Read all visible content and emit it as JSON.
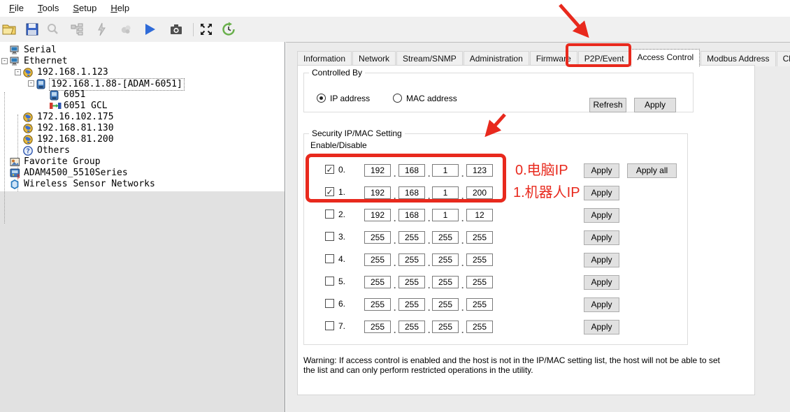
{
  "menu": {
    "items": [
      "File",
      "Tools",
      "Setup",
      "Help"
    ]
  },
  "toolbar": {
    "icons": [
      "open-file-icon",
      "save-icon",
      "search-icon",
      "group-config-icon",
      "flash-icon",
      "offline-icon",
      "run-icon",
      "snapshot-icon",
      "fullscreen-icon",
      "refresh-rate-icon"
    ]
  },
  "tree": {
    "items": [
      {
        "label": "Serial",
        "icon": "computer-icon",
        "level": 0,
        "expander": "",
        "selected": false
      },
      {
        "label": "Ethernet",
        "icon": "computer-icon",
        "level": 0,
        "expander": "-",
        "selected": false
      },
      {
        "label": "192.168.1.123",
        "icon": "globe-icon",
        "level": 1,
        "expander": "-",
        "selected": false
      },
      {
        "label": "192.168.1.88-[ADAM-6051]",
        "icon": "device-icon",
        "level": 2,
        "expander": "-",
        "selected": true
      },
      {
        "label": "6051",
        "icon": "device-icon",
        "level": 3,
        "expander": "",
        "selected": false
      },
      {
        "label": "6051 GCL",
        "icon": "gcl-icon",
        "level": 3,
        "expander": "",
        "selected": false
      },
      {
        "label": "172.16.102.175",
        "icon": "globe-icon",
        "level": 1,
        "expander": "",
        "selected": false
      },
      {
        "label": "192.168.81.130",
        "icon": "globe-icon",
        "level": 1,
        "expander": "",
        "selected": false
      },
      {
        "label": "192.168.81.200",
        "icon": "globe-icon",
        "level": 1,
        "expander": "",
        "selected": false
      },
      {
        "label": "Others",
        "icon": "others-icon",
        "level": 1,
        "expander": "",
        "selected": false
      },
      {
        "label": "Favorite Group",
        "icon": "favorite-icon",
        "level": 0,
        "expander": "",
        "selected": false
      },
      {
        "label": "ADAM4500_5510Series",
        "icon": "adam4500-icon",
        "level": 0,
        "expander": "",
        "selected": false
      },
      {
        "label": "Wireless Sensor Networks",
        "icon": "wireless-icon",
        "level": 0,
        "expander": "",
        "selected": false
      }
    ]
  },
  "tabs": {
    "items": [
      "Information",
      "Network",
      "Stream/SNMP",
      "Administration",
      "Firmware",
      "P2P/Event",
      "Access Control",
      "Modbus Address",
      "Cloud"
    ],
    "selected": "Access Control"
  },
  "access_control": {
    "controlled_by": {
      "title": "Controlled By",
      "options": [
        {
          "label": "IP address",
          "selected": true
        },
        {
          "label": "MAC address",
          "selected": false
        }
      ],
      "refresh_label": "Refresh",
      "apply_label": "Apply"
    },
    "security": {
      "title": "Security IP/MAC Setting",
      "enable_label": "Enable/Disable",
      "apply_label": "Apply",
      "apply_all_label": "Apply all",
      "rows": [
        {
          "label": "0.",
          "checked": true,
          "octets": [
            "192",
            "168",
            "1",
            "123"
          ]
        },
        {
          "label": "1.",
          "checked": true,
          "octets": [
            "192",
            "168",
            "1",
            "200"
          ]
        },
        {
          "label": "2.",
          "checked": false,
          "octets": [
            "192",
            "168",
            "1",
            "12"
          ]
        },
        {
          "label": "3.",
          "checked": false,
          "octets": [
            "255",
            "255",
            "255",
            "255"
          ]
        },
        {
          "label": "4.",
          "checked": false,
          "octets": [
            "255",
            "255",
            "255",
            "255"
          ]
        },
        {
          "label": "5.",
          "checked": false,
          "octets": [
            "255",
            "255",
            "255",
            "255"
          ]
        },
        {
          "label": "6.",
          "checked": false,
          "octets": [
            "255",
            "255",
            "255",
            "255"
          ]
        },
        {
          "label": "7.",
          "checked": false,
          "octets": [
            "255",
            "255",
            "255",
            "255"
          ]
        }
      ]
    },
    "warning_line1": "Warning: If access control is enabled and the host is not in the IP/MAC setting list, the host will not be able to set",
    "warning_line2": "the list and can only perform restricted operations in the utility."
  },
  "annotations": {
    "color": "#e8291d",
    "row0_text": "0.电脑IP",
    "row1_text": "1.机器人IP"
  }
}
